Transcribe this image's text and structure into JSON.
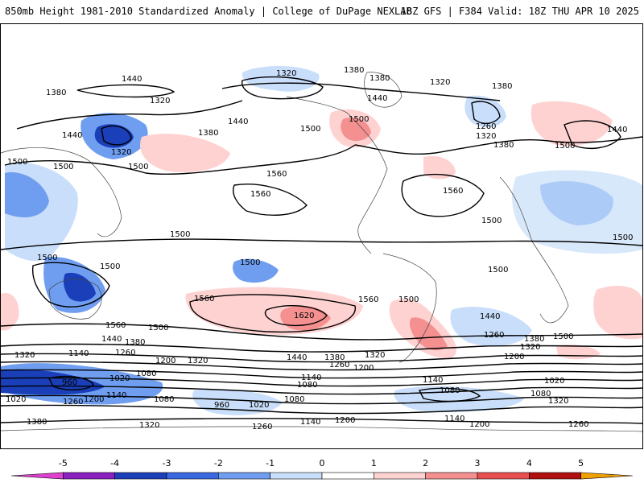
{
  "header": {
    "title": "850mb Height 1981-2010 Standardized Anomaly | College of DuPage NEXLAB",
    "run_info": "18Z GFS | F384 Valid: 18Z THU APR 10 2025"
  },
  "colorbar": {
    "ticks": [
      "-5",
      "-4",
      "-3",
      "-2",
      "-1",
      "0",
      "1",
      "2",
      "3",
      "4",
      "5"
    ],
    "colors": [
      "#e040d0",
      "#8a20c0",
      "#1a3fb8",
      "#3a68e0",
      "#6f9ef0",
      "#c8defa",
      "#ffffff",
      "#ffd2d2",
      "#f49090",
      "#e85050",
      "#b01010",
      "#f0a000"
    ]
  },
  "contours": {
    "l1440a": "1440",
    "l1320a": "1320",
    "l1380a": "1380",
    "l1380b": "1380",
    "l1320b": "1320",
    "l1380c": "1380",
    "l1320c": "1320",
    "l1380d": "1380",
    "l1440b": "1440",
    "l1380e": "1380",
    "l1440c": "1440",
    "l1500a": "1500",
    "l1500b": "1500",
    "l1260a": "1260",
    "l1320d": "1320",
    "l1440d": "1440",
    "l1440e": "1440",
    "l1380f": "1380",
    "l1320e": "1320",
    "l1500c": "1500",
    "l1500d": "1500",
    "l1500e": "1500",
    "l1560a": "1560",
    "l1560b": "1560",
    "l1560c": "1560",
    "l1500f": "1500",
    "l1500g": "1500",
    "l1500h": "1500",
    "l1500i": "1500",
    "l1500j": "1500",
    "l1500k": "1500",
    "l1500l": "1500",
    "l1500m": "1500",
    "l1560d": "1560",
    "l1620": "1620",
    "l1560e": "1560",
    "l1560f": "1560",
    "l1500n": "1500",
    "l1500o": "1500",
    "l1440f": "1440",
    "l1380g": "1380",
    "l1260b": "1260",
    "l1440g": "1440",
    "l1380h": "1380",
    "l1320f": "1320",
    "l1500p": "1500",
    "l1200a": "1200",
    "l1320g": "1320",
    "l1140a": "1140",
    "l1260c": "1260",
    "l1200b": "1200",
    "l1320h": "1320",
    "l1440h": "1440",
    "l1380i": "1380",
    "l1320i": "1320",
    "l1260d": "1260",
    "l1200c": "1200",
    "l1140b": "1140",
    "l1080a": "1080",
    "l960a": "960",
    "l1020a": "1020",
    "l1080b": "1080",
    "l1020b": "1020",
    "l1260e": "1260",
    "l1200d": "1200",
    "l1140c": "1140",
    "l1080c": "1080",
    "l960b": "960",
    "l1020c": "1020",
    "l1080d": "1080",
    "l1140d": "1140",
    "l1020d": "1020",
    "l1080e": "1080",
    "l1080f": "1080",
    "l1320j": "1320",
    "l1260f": "1260",
    "l1380j": "1380",
    "l1320k": "1320",
    "l1260g": "1260",
    "l1140e": "1140",
    "l1200e": "1200",
    "l1140f": "1140",
    "l1200f": "1200"
  }
}
